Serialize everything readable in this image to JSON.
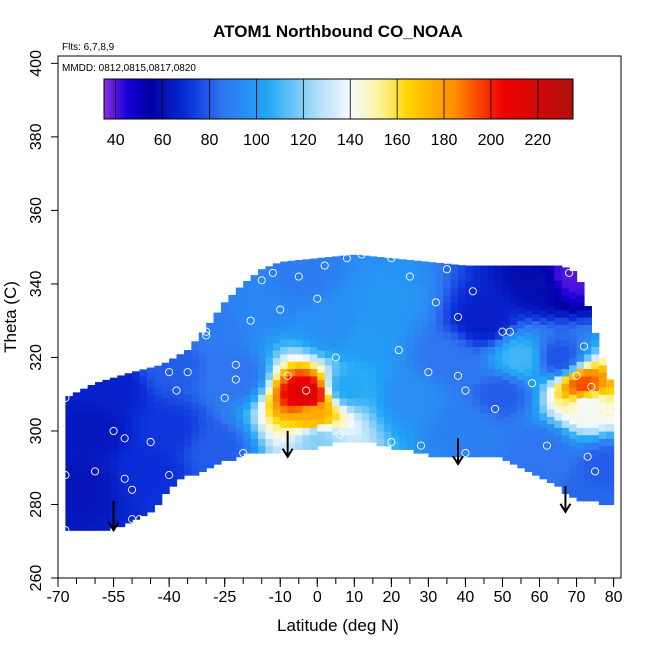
{
  "chart_data": {
    "type": "heatmap",
    "title": "ATOM1 Northbound CO_NOAA",
    "subtitle_flights": "Flts: 6,7,8,9",
    "subtitle_dates": "MMDD: 0812,0815,0817,0820",
    "xlabel": "Latitude (deg N)",
    "ylabel": "Theta (C)",
    "xlim": [
      -70,
      82
    ],
    "ylim": [
      260,
      402
    ],
    "x_ticks": [
      -70,
      -55,
      -40,
      -25,
      -10,
      0,
      10,
      20,
      30,
      40,
      50,
      60,
      70,
      80
    ],
    "y_ticks": [
      260,
      280,
      300,
      320,
      340,
      360,
      380,
      400
    ],
    "colorbar": {
      "min": 35,
      "max": 235,
      "ticks": [
        40,
        60,
        80,
        100,
        120,
        140,
        160,
        180,
        200,
        220
      ],
      "stops": [
        {
          "v": 35,
          "color": "#8a2be2"
        },
        {
          "v": 45,
          "color": "#1800d8"
        },
        {
          "v": 55,
          "color": "#0000a0"
        },
        {
          "v": 70,
          "color": "#0a2dd8"
        },
        {
          "v": 85,
          "color": "#2f74f0"
        },
        {
          "v": 105,
          "color": "#21a8f6"
        },
        {
          "v": 125,
          "color": "#a9dcf7"
        },
        {
          "v": 140,
          "color": "#f5f9ff"
        },
        {
          "v": 152,
          "color": "#fff4a0"
        },
        {
          "v": 165,
          "color": "#ffd400"
        },
        {
          "v": 185,
          "color": "#ff8a00"
        },
        {
          "v": 205,
          "color": "#f00000"
        },
        {
          "v": 235,
          "color": "#b01010"
        }
      ]
    },
    "domain_top": [
      [
        -68,
        309
      ],
      [
        -60,
        313
      ],
      [
        -50,
        316
      ],
      [
        -42,
        318
      ],
      [
        -35,
        322
      ],
      [
        -30,
        328
      ],
      [
        -25,
        335
      ],
      [
        -20,
        340
      ],
      [
        -15,
        344
      ],
      [
        -10,
        346
      ],
      [
        0,
        347
      ],
      [
        10,
        348
      ],
      [
        20,
        347
      ],
      [
        30,
        346
      ],
      [
        40,
        345
      ],
      [
        50,
        345
      ],
      [
        60,
        345
      ],
      [
        66,
        345
      ],
      [
        70,
        343
      ],
      [
        72,
        338
      ],
      [
        74,
        330
      ],
      [
        77,
        320
      ],
      [
        80,
        311
      ],
      [
        80,
        307
      ]
    ],
    "domain_bottom": [
      [
        -68,
        273
      ],
      [
        -55,
        274
      ],
      [
        -45,
        278
      ],
      [
        -38,
        287
      ],
      [
        -30,
        290
      ],
      [
        -20,
        294
      ],
      [
        -10,
        295
      ],
      [
        0,
        296
      ],
      [
        10,
        298
      ],
      [
        20,
        296
      ],
      [
        30,
        294
      ],
      [
        40,
        293
      ],
      [
        50,
        293
      ],
      [
        60,
        288
      ],
      [
        70,
        282
      ],
      [
        80,
        280
      ]
    ],
    "field_anchors": [
      {
        "lat": -65,
        "theta": 285,
        "co": 62
      },
      {
        "lat": -60,
        "theta": 300,
        "co": 63
      },
      {
        "lat": -55,
        "theta": 312,
        "co": 66
      },
      {
        "lat": -45,
        "theta": 290,
        "co": 70
      },
      {
        "lat": -40,
        "theta": 300,
        "co": 72
      },
      {
        "lat": -40,
        "theta": 318,
        "co": 80
      },
      {
        "lat": -28,
        "theta": 295,
        "co": 80
      },
      {
        "lat": -22,
        "theta": 315,
        "co": 85
      },
      {
        "lat": -30,
        "theta": 330,
        "co": 88
      },
      {
        "lat": -15,
        "theta": 335,
        "co": 92
      },
      {
        "lat": -5,
        "theta": 342,
        "co": 88
      },
      {
        "lat": 5,
        "theta": 328,
        "co": 95
      },
      {
        "lat": -3,
        "theta": 310,
        "co": 215
      },
      {
        "lat": -1,
        "theta": 304,
        "co": 175
      },
      {
        "lat": 0,
        "theta": 298,
        "co": 120
      },
      {
        "lat": 8,
        "theta": 312,
        "co": 105
      },
      {
        "lat": 12,
        "theta": 325,
        "co": 100
      },
      {
        "lat": 20,
        "theta": 335,
        "co": 98
      },
      {
        "lat": 25,
        "theta": 310,
        "co": 95
      },
      {
        "lat": 35,
        "theta": 320,
        "co": 85
      },
      {
        "lat": 40,
        "theta": 300,
        "co": 90
      },
      {
        "lat": 45,
        "theta": 330,
        "co": 65
      },
      {
        "lat": 50,
        "theta": 310,
        "co": 80
      },
      {
        "lat": 55,
        "theta": 320,
        "co": 110
      },
      {
        "lat": 60,
        "theta": 295,
        "co": 85
      },
      {
        "lat": 60,
        "theta": 340,
        "co": 60
      },
      {
        "lat": 68,
        "theta": 342,
        "co": 40
      },
      {
        "lat": 65,
        "theta": 320,
        "co": 78
      },
      {
        "lat": 72,
        "theta": 312,
        "co": 195
      },
      {
        "lat": 73,
        "theta": 308,
        "co": 140
      },
      {
        "lat": 78,
        "theta": 290,
        "co": 80
      },
      {
        "lat": 75,
        "theta": 280,
        "co": 82
      }
    ],
    "sample_points": [
      [
        -68,
        309
      ],
      [
        -68,
        288
      ],
      [
        -68,
        273
      ],
      [
        -60,
        289
      ],
      [
        -55,
        300
      ],
      [
        -52,
        298
      ],
      [
        -52,
        287
      ],
      [
        -50,
        284
      ],
      [
        -50,
        276
      ],
      [
        -48,
        276
      ],
      [
        -45,
        297
      ],
      [
        -40,
        288
      ],
      [
        -40,
        316
      ],
      [
        -38,
        311
      ],
      [
        -35,
        316
      ],
      [
        -30,
        326
      ],
      [
        -30,
        327
      ],
      [
        -25,
        309
      ],
      [
        -22,
        318
      ],
      [
        -22,
        314
      ],
      [
        -20,
        294
      ],
      [
        -18,
        330
      ],
      [
        -15,
        341
      ],
      [
        -12,
        343
      ],
      [
        -10,
        333
      ],
      [
        -8,
        315
      ],
      [
        -5,
        342
      ],
      [
        -3,
        311
      ],
      [
        0,
        336
      ],
      [
        2,
        345
      ],
      [
        5,
        320
      ],
      [
        6,
        299
      ],
      [
        8,
        347
      ],
      [
        12,
        348
      ],
      [
        20,
        347
      ],
      [
        20,
        297
      ],
      [
        22,
        322
      ],
      [
        25,
        342
      ],
      [
        28,
        296
      ],
      [
        30,
        316
      ],
      [
        32,
        335
      ],
      [
        35,
        344
      ],
      [
        38,
        315
      ],
      [
        38,
        331
      ],
      [
        40,
        311
      ],
      [
        40,
        294
      ],
      [
        42,
        338
      ],
      [
        48,
        306
      ],
      [
        50,
        327
      ],
      [
        52,
        327
      ],
      [
        58,
        313
      ],
      [
        62,
        296
      ],
      [
        68,
        343
      ],
      [
        70,
        315
      ],
      [
        72,
        323
      ],
      [
        72,
        308
      ],
      [
        73,
        293
      ],
      [
        74,
        278
      ],
      [
        74,
        312
      ],
      [
        75,
        289
      ],
      [
        76,
        278
      ],
      [
        78,
        306
      ],
      [
        80,
        306
      ],
      [
        80,
        277
      ]
    ],
    "arrows": [
      {
        "lat": -55,
        "theta_start": 281,
        "theta_end": 273
      },
      {
        "lat": -8,
        "theta_start": 300,
        "theta_end": 293
      },
      {
        "lat": 38,
        "theta_start": 298,
        "theta_end": 291
      },
      {
        "lat": 67,
        "theta_start": 285,
        "theta_end": 278
      }
    ]
  }
}
